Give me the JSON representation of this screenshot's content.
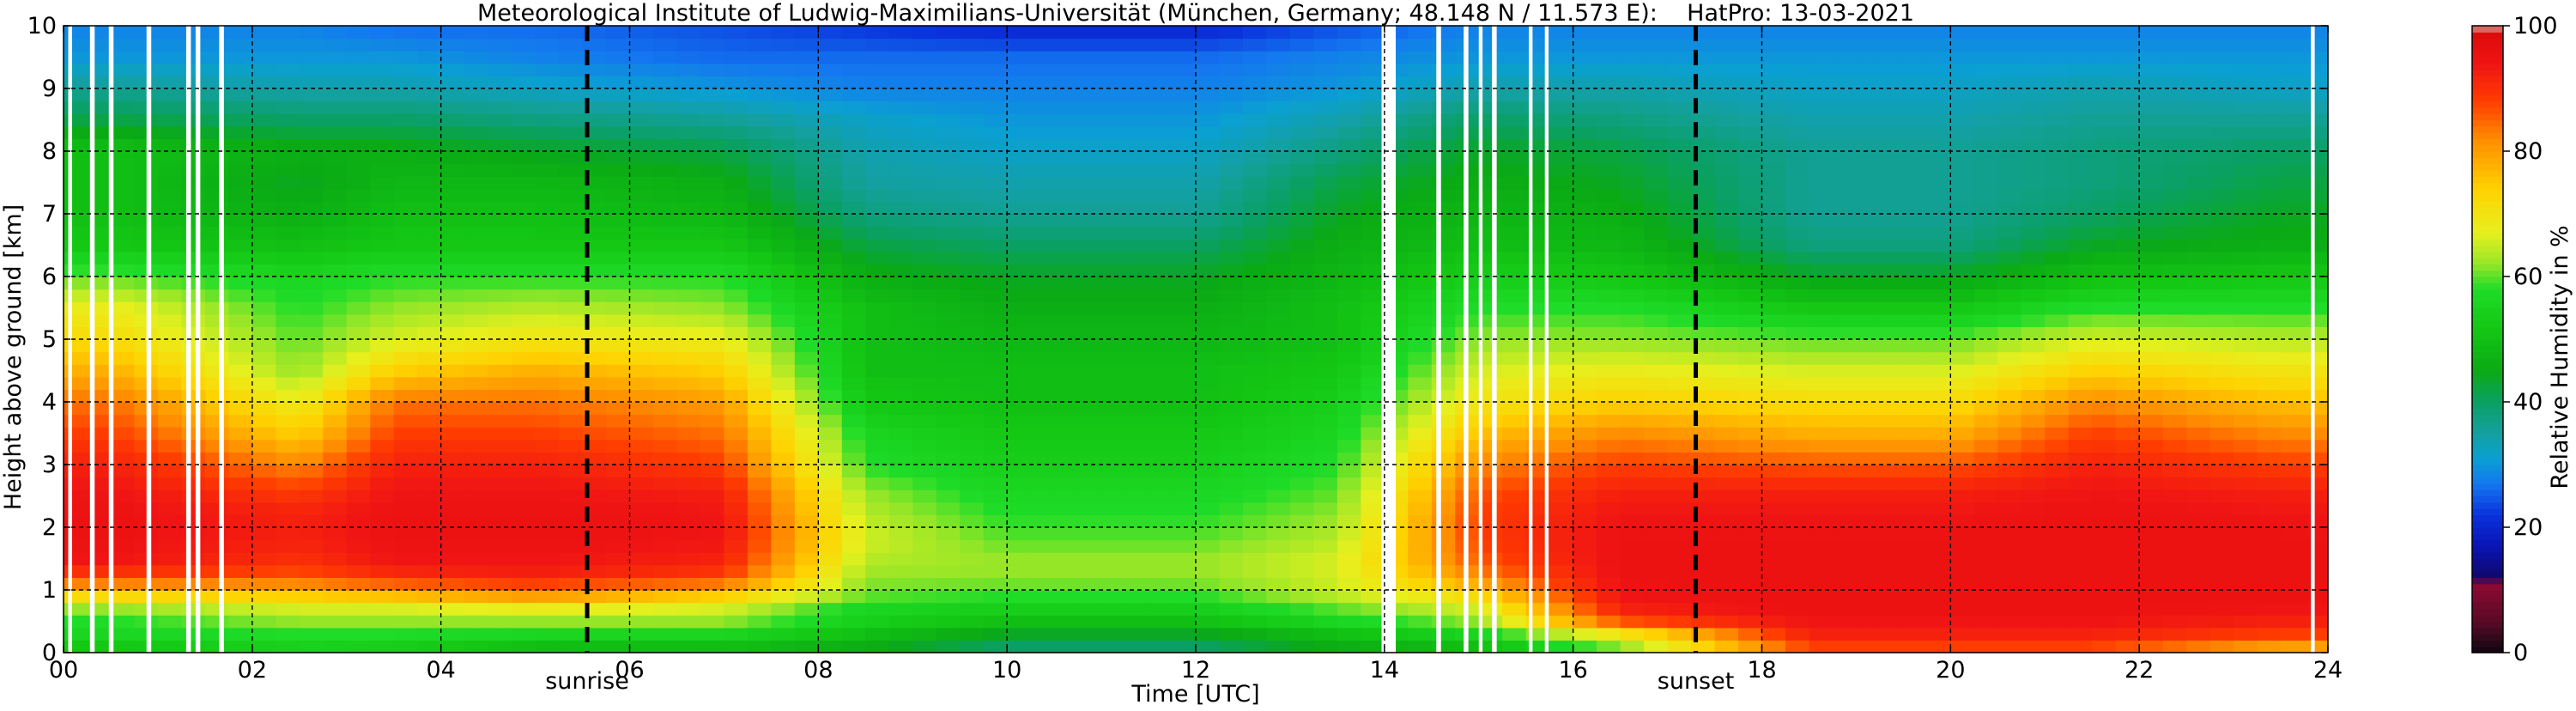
{
  "chart_data": {
    "type": "heatmap",
    "title": "Meteorological Institute of Ludwig-Maximilians-Universität (München, Germany; 48.148 N / 11.573 E):    HatPro: 13-03-2021",
    "xlabel": "Time [UTC]",
    "ylabel": "Height above ground [km]",
    "xlim": [
      0,
      24
    ],
    "ylim": [
      0,
      10
    ],
    "x_ticks": [
      0,
      2,
      4,
      6,
      8,
      10,
      12,
      14,
      16,
      18,
      20,
      22,
      24
    ],
    "x_tick_labels": [
      "00",
      "02",
      "04",
      "06",
      "08",
      "10",
      "12",
      "14",
      "16",
      "18",
      "20",
      "22",
      "24"
    ],
    "y_ticks": [
      0,
      1,
      2,
      3,
      4,
      5,
      6,
      7,
      8,
      9,
      10
    ],
    "y_tick_labels": [
      "0",
      "1",
      "2",
      "3",
      "4",
      "5",
      "6",
      "7",
      "8",
      "9",
      "10"
    ],
    "grid": true,
    "colorbar": {
      "label": "Relative Humidity in %",
      "ticks": [
        0,
        20,
        40,
        60,
        80,
        100
      ],
      "range": [
        0,
        100
      ],
      "colors": [
        {
          "v": 0,
          "c": "#100510"
        },
        {
          "v": 3,
          "c": "#3a0a1e"
        },
        {
          "v": 5,
          "c": "#5a0a26"
        },
        {
          "v": 11,
          "c": "#8c0a32"
        },
        {
          "v": 12,
          "c": "#10086a"
        },
        {
          "v": 17,
          "c": "#0a14b4"
        },
        {
          "v": 22,
          "c": "#0a32dc"
        },
        {
          "v": 27,
          "c": "#1478f0"
        },
        {
          "v": 31,
          "c": "#0aa0d2"
        },
        {
          "v": 35,
          "c": "#14a0a0"
        },
        {
          "v": 40,
          "c": "#0aa064"
        },
        {
          "v": 45,
          "c": "#0aaa14"
        },
        {
          "v": 52,
          "c": "#14c814"
        },
        {
          "v": 58,
          "c": "#1edc28"
        },
        {
          "v": 62,
          "c": "#96e628"
        },
        {
          "v": 67,
          "c": "#e6f01e"
        },
        {
          "v": 74,
          "c": "#ffd200"
        },
        {
          "v": 82,
          "c": "#ff8c00"
        },
        {
          "v": 88,
          "c": "#ff3c00"
        },
        {
          "v": 94,
          "c": "#f01414"
        },
        {
          "v": 99,
          "c": "#dc0a0a"
        },
        {
          "v": 100,
          "c": "#d2c3b4"
        }
      ]
    },
    "heights_km": [
      0.1,
      0.3,
      0.5,
      0.7,
      0.9,
      1.2,
      1.5,
      1.8,
      2.2,
      2.6,
      3.0,
      3.5,
      4.0,
      4.5,
      5.0,
      5.5,
      6.0,
      6.5,
      7.0,
      7.5,
      8.0,
      8.5,
      9.0,
      9.5,
      10.0
    ],
    "profiles": [
      {
        "t": 0.5,
        "rh": [
          52,
          56,
          58,
          62,
          72,
          88,
          94,
          95,
          95,
          94,
          92,
          88,
          84,
          78,
          72,
          68,
          60,
          52,
          50,
          50,
          50,
          42,
          36,
          30,
          28
        ]
      },
      {
        "t": 2.5,
        "rh": [
          55,
          58,
          62,
          66,
          74,
          86,
          90,
          92,
          92,
          88,
          82,
          74,
          68,
          62,
          60,
          58,
          56,
          50,
          46,
          44,
          46,
          40,
          34,
          30,
          28
        ]
      },
      {
        "t": 3.5,
        "rh": [
          54,
          58,
          62,
          66,
          76,
          90,
          94,
          95,
          95,
          94,
          92,
          88,
          84,
          74,
          66,
          62,
          58,
          52,
          50,
          48,
          46,
          40,
          34,
          30,
          26
        ]
      },
      {
        "t": 5.0,
        "rh": [
          50,
          56,
          62,
          68,
          80,
          92,
          94,
          95,
          95,
          94,
          92,
          88,
          84,
          78,
          70,
          64,
          58,
          52,
          50,
          48,
          44,
          38,
          32,
          28,
          26
        ]
      },
      {
        "t": 7.0,
        "rh": [
          50,
          56,
          62,
          66,
          74,
          88,
          92,
          94,
          94,
          92,
          88,
          84,
          80,
          74,
          68,
          62,
          58,
          52,
          48,
          46,
          42,
          36,
          30,
          26,
          24
        ]
      },
      {
        "t": 8.5,
        "rh": [
          46,
          50,
          54,
          56,
          60,
          62,
          64,
          66,
          64,
          62,
          58,
          56,
          52,
          50,
          50,
          50,
          46,
          42,
          38,
          35,
          34,
          32,
          28,
          26,
          22
        ]
      },
      {
        "t": 10.0,
        "rh": [
          40,
          44,
          50,
          54,
          58,
          62,
          62,
          60,
          58,
          56,
          54,
          52,
          50,
          50,
          48,
          46,
          44,
          40,
          36,
          34,
          32,
          30,
          28,
          26,
          20
        ]
      },
      {
        "t": 12.0,
        "rh": [
          40,
          44,
          50,
          54,
          58,
          62,
          62,
          60,
          58,
          56,
          54,
          52,
          50,
          50,
          48,
          46,
          44,
          40,
          36,
          34,
          32,
          30,
          28,
          26,
          20
        ]
      },
      {
        "t": 13.5,
        "rh": [
          46,
          50,
          56,
          60,
          64,
          66,
          66,
          64,
          62,
          60,
          58,
          56,
          54,
          52,
          50,
          50,
          48,
          46,
          44,
          42,
          38,
          34,
          30,
          28,
          24
        ]
      },
      {
        "t": 15.0,
        "rh": [
          50,
          56,
          62,
          66,
          72,
          82,
          86,
          88,
          88,
          86,
          82,
          76,
          70,
          66,
          62,
          58,
          54,
          50,
          48,
          46,
          44,
          40,
          34,
          30,
          28
        ]
      },
      {
        "t": 16.5,
        "rh": [
          62,
          70,
          86,
          92,
          94,
          95,
          95,
          95,
          94,
          92,
          88,
          82,
          74,
          68,
          62,
          58,
          52,
          48,
          46,
          44,
          42,
          38,
          34,
          30,
          28
        ]
      },
      {
        "t": 18.5,
        "rh": [
          88,
          92,
          94,
          95,
          95,
          95,
          95,
          95,
          94,
          92,
          86,
          78,
          72,
          66,
          60,
          52,
          44,
          38,
          36,
          36,
          36,
          34,
          32,
          30,
          28
        ]
      },
      {
        "t": 20.0,
        "rh": [
          88,
          92,
          94,
          95,
          95,
          95,
          95,
          95,
          94,
          92,
          86,
          78,
          72,
          66,
          60,
          52,
          44,
          38,
          36,
          36,
          36,
          34,
          32,
          30,
          28
        ]
      },
      {
        "t": 21.5,
        "rh": [
          88,
          92,
          94,
          95,
          95,
          95,
          95,
          95,
          95,
          94,
          92,
          88,
          82,
          74,
          66,
          58,
          50,
          44,
          40,
          38,
          38,
          36,
          34,
          30,
          28
        ]
      },
      {
        "t": 23.5,
        "rh": [
          80,
          88,
          92,
          94,
          95,
          95,
          95,
          95,
          94,
          92,
          88,
          82,
          76,
          70,
          64,
          58,
          52,
          46,
          44,
          42,
          40,
          36,
          32,
          30,
          28
        ]
      }
    ],
    "missing_time_ranges": [
      [
        0.05,
        0.09
      ],
      [
        0.28,
        0.33
      ],
      [
        0.48,
        0.53
      ],
      [
        0.88,
        0.93
      ],
      [
        1.3,
        1.35
      ],
      [
        1.4,
        1.45
      ],
      [
        1.65,
        1.7
      ],
      [
        13.97,
        14.12
      ],
      [
        14.55,
        14.6
      ],
      [
        14.84,
        14.89
      ],
      [
        15.0,
        15.04
      ],
      [
        15.14,
        15.19
      ],
      [
        15.53,
        15.57
      ],
      [
        15.7,
        15.74
      ],
      [
        23.82,
        23.86
      ]
    ],
    "annotations": [
      {
        "label": "sunrise",
        "t": 5.55
      },
      {
        "label": "sunset",
        "t": 17.3
      }
    ]
  }
}
